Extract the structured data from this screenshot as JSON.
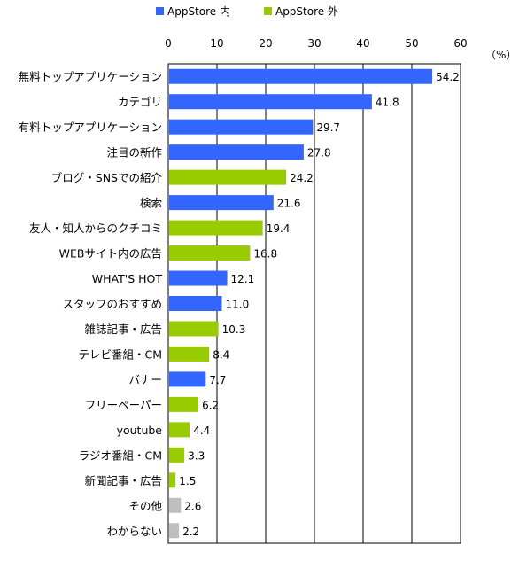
{
  "chart_data": {
    "type": "bar",
    "orientation": "horizontal",
    "unit_label": "（%）",
    "xlim": [
      0,
      60
    ],
    "xticks": [
      0,
      10,
      20,
      30,
      40,
      50,
      60
    ],
    "grid": true,
    "legend": {
      "placement": "top",
      "entries": [
        {
          "key": "inside",
          "label": "AppStore 内",
          "color": "#3366ff"
        },
        {
          "key": "outside",
          "label": "AppStore 外",
          "color": "#99cc00"
        }
      ]
    },
    "other_color": "#bfbfbf",
    "categories": [
      "無料トップアプリケーション",
      "カテゴリ",
      "有料トップアプリケーション",
      "注目の新作",
      "ブログ・SNSでの紹介",
      "検索",
      "友人・知人からのクチコミ",
      "WEBサイト内の広告",
      "WHAT'S HOT",
      "スタッフのおすすめ",
      "雑誌記事・広告",
      "テレビ番組・CM",
      "バナー",
      "フリーペーパー",
      "youtube",
      "ラジオ番組・CM",
      "新聞記事・広告",
      "その他",
      "わからない"
    ],
    "values": [
      54.2,
      41.8,
      29.7,
      27.8,
      24.2,
      21.6,
      19.4,
      16.8,
      12.1,
      11.0,
      10.3,
      8.4,
      7.7,
      6.2,
      4.4,
      3.3,
      1.5,
      2.6,
      2.2
    ],
    "value_labels": [
      "54.2",
      "41.8",
      "29.7",
      "27.8",
      "24.2",
      "21.6",
      "19.4",
      "16.8",
      "12.1",
      "11.0",
      "10.3",
      "8.4",
      "7.7",
      "6.2",
      "4.4",
      "3.3",
      "1.5",
      "2.6",
      "2.2"
    ],
    "groups": [
      "inside",
      "inside",
      "inside",
      "inside",
      "outside",
      "inside",
      "outside",
      "outside",
      "inside",
      "inside",
      "outside",
      "outside",
      "inside",
      "outside",
      "outside",
      "outside",
      "outside",
      "other",
      "other"
    ]
  }
}
